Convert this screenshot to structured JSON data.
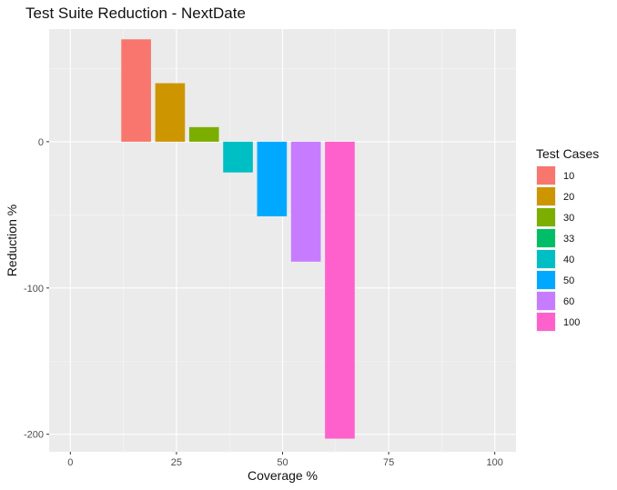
{
  "chart_data": {
    "type": "bar",
    "title": "Test Suite Reduction - NextDate",
    "xlabel": "Coverage %",
    "ylabel": "Reduction %",
    "xlim": [
      -5,
      105
    ],
    "ylim": [
      -212,
      77
    ],
    "x_ticks": [
      0,
      25,
      50,
      75,
      100
    ],
    "x_tick_labels": [
      "0",
      "25",
      "50",
      "75",
      "100"
    ],
    "y_ticks": [
      0,
      -100,
      -200
    ],
    "y_tick_labels": [
      "0",
      "-100",
      "-200"
    ],
    "grid": true,
    "legend": {
      "title": "Test Cases",
      "placement": "right",
      "entries": [
        {
          "label": "10",
          "color": "#F8766D"
        },
        {
          "label": "20",
          "color": "#CD9600"
        },
        {
          "label": "30",
          "color": "#7CAE00"
        },
        {
          "label": "33",
          "color": "#00BE67"
        },
        {
          "label": "40",
          "color": "#00BFC4"
        },
        {
          "label": "50",
          "color": "#00A9FF"
        },
        {
          "label": "60",
          "color": "#C77CFF"
        },
        {
          "label": "100",
          "color": "#FF61CC"
        }
      ]
    },
    "bar_width": 7,
    "bars": [
      {
        "group": "10",
        "x": 15.5,
        "value": 70
      },
      {
        "group": "20",
        "x": 23.5,
        "value": 40
      },
      {
        "group": "30",
        "x": 31.5,
        "value": 10
      },
      {
        "group": "40",
        "x": 39.5,
        "value": -21
      },
      {
        "group": "50",
        "x": 47.5,
        "value": -51
      },
      {
        "group": "60",
        "x": 55.5,
        "value": -82
      },
      {
        "group": "100",
        "x": 63.5,
        "value": -203
      }
    ]
  }
}
